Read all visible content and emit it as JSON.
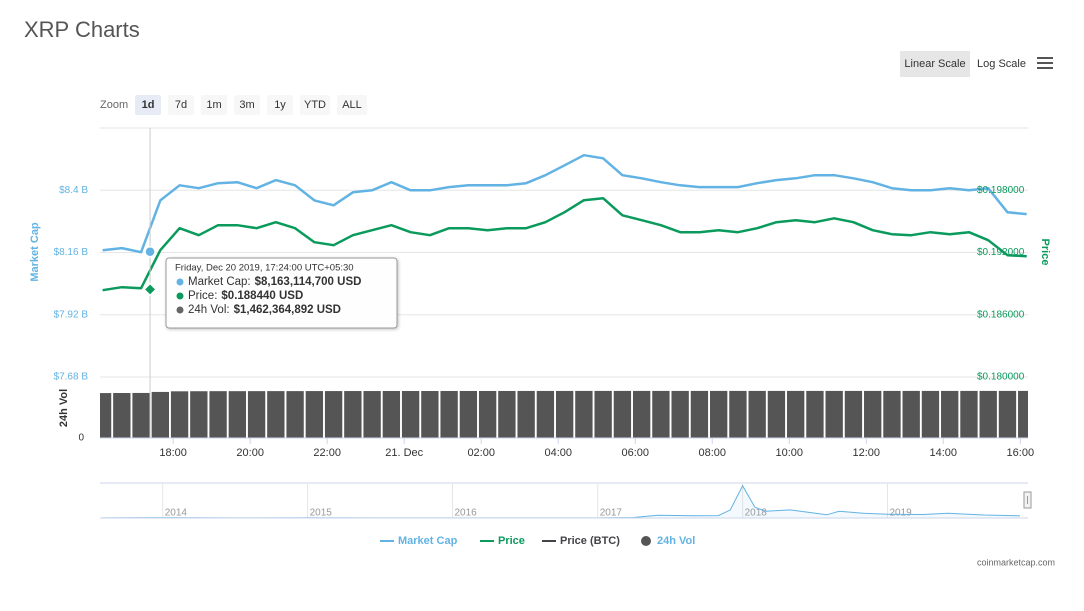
{
  "chart_data": [
    {
      "type": "line",
      "title": "XRP Charts",
      "x": [
        "2019-12-20T16:10",
        "2019-12-20T16:40",
        "2019-12-20T17:10",
        "2019-12-20T17:40",
        "2019-12-20T18:10",
        "2019-12-20T18:40",
        "2019-12-20T19:10",
        "2019-12-20T19:40",
        "2019-12-20T20:10",
        "2019-12-20T20:40",
        "2019-12-20T21:10",
        "2019-12-20T21:40",
        "2019-12-20T22:10",
        "2019-12-20T22:40",
        "2019-12-20T23:10",
        "2019-12-20T23:40",
        "2019-12-21T00:10",
        "2019-12-21T00:40",
        "2019-12-21T01:10",
        "2019-12-21T01:40",
        "2019-12-21T02:10",
        "2019-12-21T02:40",
        "2019-12-21T03:10",
        "2019-12-21T03:40",
        "2019-12-21T04:10",
        "2019-12-21T04:40",
        "2019-12-21T05:10",
        "2019-12-21T05:40",
        "2019-12-21T06:10",
        "2019-12-21T06:40",
        "2019-12-21T07:10",
        "2019-12-21T07:40",
        "2019-12-21T08:10",
        "2019-12-21T08:40",
        "2019-12-21T09:10",
        "2019-12-21T09:40",
        "2019-12-21T10:10",
        "2019-12-21T10:40",
        "2019-12-21T11:10",
        "2019-12-21T11:40",
        "2019-12-21T12:10",
        "2019-12-21T12:40",
        "2019-12-21T13:10",
        "2019-12-21T13:40",
        "2019-12-21T14:10",
        "2019-12-21T14:40",
        "2019-12-21T15:10",
        "2019-12-21T15:40",
        "2019-12-21T16:10"
      ],
      "xlim": [
        "2019-12-20T16:06",
        "2019-12-21T16:12"
      ],
      "xticks": [
        {
          "value": "2019-12-20T18:00",
          "label": "18:00"
        },
        {
          "value": "2019-12-20T20:00",
          "label": "20:00"
        },
        {
          "value": "2019-12-20T22:00",
          "label": "22:00"
        },
        {
          "value": "2019-12-21T00:00",
          "label": "21. Dec"
        },
        {
          "value": "2019-12-21T02:00",
          "label": "02:00"
        },
        {
          "value": "2019-12-21T04:00",
          "label": "04:00"
        },
        {
          "value": "2019-12-21T06:00",
          "label": "06:00"
        },
        {
          "value": "2019-12-21T08:00",
          "label": "08:00"
        },
        {
          "value": "2019-12-21T10:00",
          "label": "10:00"
        },
        {
          "value": "2019-12-21T12:00",
          "label": "12:00"
        },
        {
          "value": "2019-12-21T14:00",
          "label": "14:00"
        },
        {
          "value": "2019-12-21T16:00",
          "label": "16:00"
        }
      ],
      "ylabel": "Market Cap",
      "ylim": [
        7680000000,
        8640000000
      ],
      "yticks": [
        {
          "value": 7680000000,
          "label": "$7.68 B"
        },
        {
          "value": 7920000000,
          "label": "$7.92 B"
        },
        {
          "value": 8160000000,
          "label": "$8.16 B"
        },
        {
          "value": 8400000000,
          "label": "$8.4 B"
        }
      ],
      "y2label": "Price",
      "y2lim": [
        0.18,
        0.204
      ],
      "y2ticks": [
        {
          "value": 0.18,
          "label": "$0.180000"
        },
        {
          "value": 0.186,
          "label": "$0.186000"
        },
        {
          "value": 0.192,
          "label": "$0.192000"
        },
        {
          "value": 0.198,
          "label": "$0.198000"
        }
      ],
      "y3label": "24h Vol",
      "y3lim": [
        0,
        1720000000
      ],
      "y3ticks": [
        0
      ],
      "grid": true,
      "log_scale": false,
      "series": [
        {
          "name": "Market Cap",
          "color": "#62b3e3",
          "type": "line",
          "marker": "circle",
          "values": [
            8169000000,
            8177000000,
            8161000000,
            8361000000,
            8419000000,
            8408000000,
            8427000000,
            8431000000,
            8408000000,
            8439000000,
            8419000000,
            8361000000,
            8342000000,
            8392000000,
            8400000000,
            8431000000,
            8400000000,
            8400000000,
            8412000000,
            8419000000,
            8419000000,
            8419000000,
            8427000000,
            8458000000,
            8496000000,
            8535000000,
            8523000000,
            8458000000,
            8446000000,
            8431000000,
            8419000000,
            8412000000,
            8412000000,
            8412000000,
            8427000000,
            8439000000,
            8446000000,
            8458000000,
            8458000000,
            8446000000,
            8431000000,
            8408000000,
            8400000000,
            8400000000,
            8408000000,
            8400000000,
            8408000000,
            8315000000,
            8308000000
          ]
        },
        {
          "name": "Price",
          "color": "#0a9a5c",
          "type": "line",
          "marker": "diamond",
          "axis": "y2",
          "values": [
            0.18837,
            0.18866,
            0.18856,
            0.19222,
            0.19434,
            0.19367,
            0.19463,
            0.19463,
            0.19434,
            0.19492,
            0.19434,
            0.19299,
            0.1927,
            0.19367,
            0.19415,
            0.19463,
            0.19396,
            0.19367,
            0.19434,
            0.19434,
            0.19415,
            0.19434,
            0.19434,
            0.19492,
            0.19588,
            0.19704,
            0.19723,
            0.19559,
            0.19511,
            0.19463,
            0.19396,
            0.19396,
            0.19415,
            0.19396,
            0.19434,
            0.19492,
            0.19511,
            0.19492,
            0.1953,
            0.19492,
            0.19415,
            0.19376,
            0.19367,
            0.19396,
            0.19376,
            0.19396,
            0.19319,
            0.19174,
            0.19164
          ]
        },
        {
          "name": "24h Vol",
          "color": "#555555",
          "type": "bar",
          "axis": "y3",
          "values": [
            1458000000,
            1460000000,
            1462000000,
            1495000000,
            1515000000,
            1518000000,
            1520000000,
            1520000000,
            1521000000,
            1522000000,
            1522000000,
            1523000000,
            1523000000,
            1524000000,
            1524000000,
            1525000000,
            1525000000,
            1525000000,
            1526000000,
            1526000000,
            1526000000,
            1526000000,
            1527000000,
            1527000000,
            1527000000,
            1528000000,
            1528000000,
            1528000000,
            1528000000,
            1528000000,
            1528000000,
            1528000000,
            1528000000,
            1528000000,
            1528000000,
            1528000000,
            1528000000,
            1528000000,
            1528000000,
            1528000000,
            1528000000,
            1528000000,
            1528000000,
            1528000000,
            1528000000,
            1528000000,
            1528000000,
            1528000000,
            1528000000
          ]
        }
      ],
      "legend_only": [
        {
          "name": "Price (BTC)",
          "color": "#434348"
        }
      ],
      "tooltip": {
        "x": "2019-12-20T17:24",
        "header": "Friday, Dec 20 2019, 17:24:00 UTC+05:30",
        "items": [
          {
            "name": "Market Cap:",
            "value": 8163114700,
            "label": "$8,163,114,700 USD",
            "color": "#62b3e3"
          },
          {
            "name": "Price:",
            "value": 0.18844,
            "label": "$0.188440 USD",
            "color": "#0a9a5c"
          },
          {
            "name": "24h Vol:",
            "value": 1462364892,
            "label": "$1,462,364,892 USD",
            "color": "#666666"
          }
        ]
      }
    },
    {
      "type": "area",
      "color": "#62b3e3",
      "x": [
        "2013-08",
        "2014-01",
        "2014-07",
        "2015-01",
        "2015-07",
        "2016-01",
        "2016-07",
        "2017-01",
        "2017-04",
        "2017-06",
        "2017-09",
        "2017-11",
        "2017-12",
        "2018-01",
        "2018-02",
        "2018-03",
        "2018-05",
        "2018-08",
        "2018-09",
        "2018-11",
        "2019-01",
        "2019-04",
        "2019-06",
        "2019-09",
        "2019-12"
      ],
      "values": [
        500000000,
        1500000000,
        500000000,
        800000000,
        300000000,
        200000000,
        200000000,
        300000000,
        2000000000,
        10000000000,
        8000000000,
        9000000000,
        30000000000,
        120000000000,
        40000000000,
        25000000000,
        30000000000,
        12000000000,
        25000000000,
        18000000000,
        14000000000,
        13000000000,
        18000000000,
        11000000000,
        8000000000
      ],
      "xlim": [
        "2013-07-27",
        "2019-12-21"
      ],
      "xticks": [
        "2014",
        "2015",
        "2016",
        "2017",
        "2018",
        "2019"
      ],
      "ylim": [
        0,
        130000000000
      ]
    }
  ],
  "ui": {
    "zoom_label": "Zoom",
    "zoom_buttons": [
      "1d",
      "7d",
      "1m",
      "3m",
      "1y",
      "YTD",
      "ALL"
    ],
    "zoom_selected": "1d",
    "scale_buttons": [
      "Linear Scale",
      "Log Scale"
    ],
    "credit": "coinmarketcap.com"
  }
}
